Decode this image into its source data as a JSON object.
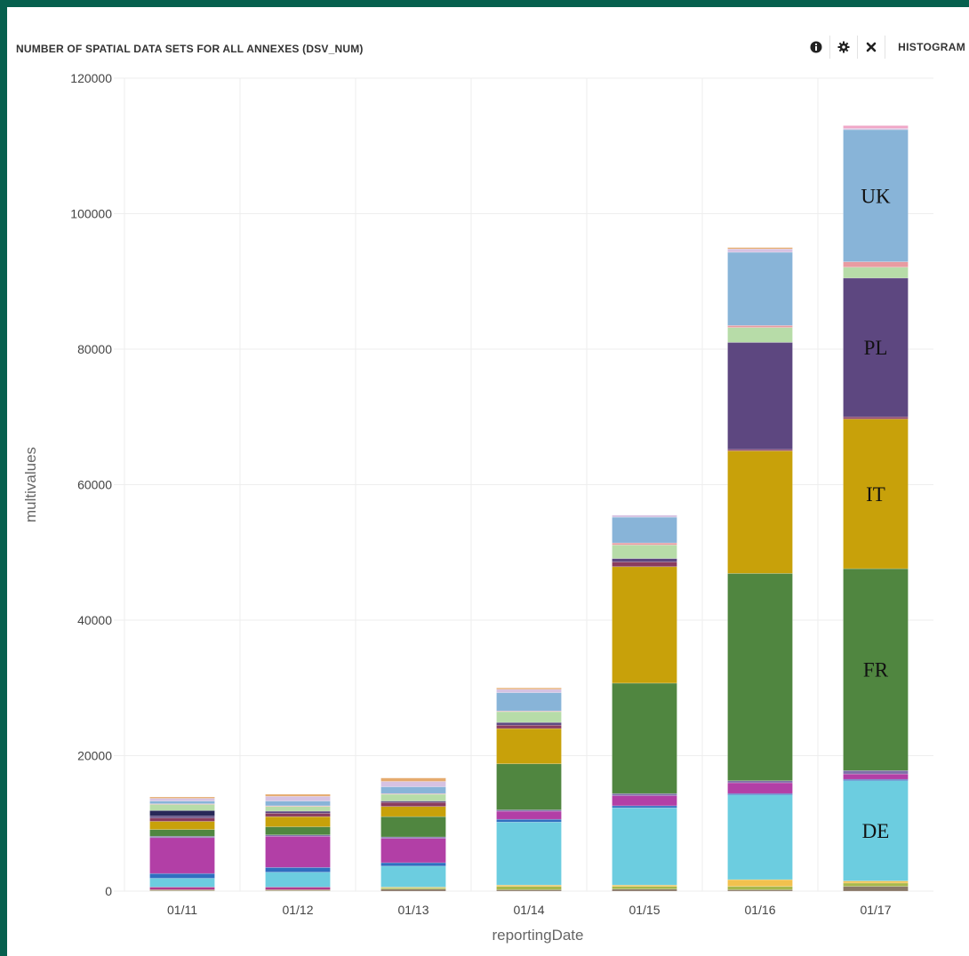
{
  "header": {
    "title": "NUMBER OF SPATIAL DATA SETS FOR ALL ANNEXES (DSV_NUM)",
    "view_label": "HISTOGRAM",
    "icons": [
      "info-icon",
      "gear-icon",
      "close-icon"
    ]
  },
  "chart_data": {
    "type": "bar",
    "stacked": true,
    "xlabel": "reportingDate",
    "ylabel": "multivalues",
    "ylim": [
      0,
      120000
    ],
    "yticks": [
      0,
      20000,
      40000,
      60000,
      80000,
      100000,
      120000
    ],
    "grid": true,
    "categories": [
      "01/11",
      "01/12",
      "01/13",
      "01/14",
      "01/15",
      "01/16",
      "01/17"
    ],
    "series": [
      {
        "color": "#8a7968",
        "values": [
          100,
          100,
          300,
          200,
          300,
          200,
          700
        ]
      },
      {
        "color": "#a8b84c",
        "values": [
          100,
          100,
          200,
          500,
          400,
          500,
          500
        ]
      },
      {
        "color": "#f2c14e",
        "values": [
          0,
          0,
          100,
          200,
          200,
          1000,
          300
        ]
      },
      {
        "color": "#b03c8c",
        "values": [
          400,
          400,
          0,
          0,
          0,
          0,
          0
        ]
      },
      {
        "color": "#6ccde0",
        "name": "DE",
        "values": [
          1300,
          2200,
          3100,
          9300,
          11400,
          12500,
          14800
        ]
      },
      {
        "color": "#2f6ec0",
        "values": [
          700,
          700,
          500,
          400,
          300,
          200,
          200
        ]
      },
      {
        "color": "#b23fa6",
        "values": [
          5300,
          4600,
          3600,
          1200,
          1500,
          1600,
          800
        ]
      },
      {
        "color": "#7e6fa8",
        "values": [
          200,
          200,
          200,
          200,
          300,
          300,
          500
        ]
      },
      {
        "color": "#508640",
        "name": "FR",
        "values": [
          1000,
          1200,
          3000,
          6800,
          16300,
          30600,
          29800
        ]
      },
      {
        "color": "#c8a10a",
        "name": "IT",
        "values": [
          1200,
          1500,
          1500,
          5200,
          17200,
          18100,
          22100
        ]
      },
      {
        "color": "#8a3c5e",
        "values": [
          500,
          500,
          600,
          500,
          700,
          200,
          300
        ]
      },
      {
        "color": "#5d4780",
        "name": "PL",
        "values": [
          300,
          300,
          200,
          400,
          500,
          15800,
          20500
        ]
      },
      {
        "color": "#282858",
        "values": [
          800,
          0,
          0,
          0,
          0,
          0,
          0
        ]
      },
      {
        "color": "#b7dca8",
        "values": [
          900,
          700,
          1000,
          1600,
          2000,
          2200,
          1600
        ]
      },
      {
        "color": "#e89ba1",
        "values": [
          100,
          100,
          100,
          100,
          300,
          300,
          800
        ]
      },
      {
        "color": "#88b4d8",
        "name": "UK",
        "values": [
          400,
          700,
          1000,
          2700,
          3800,
          10800,
          19500
        ]
      },
      {
        "color": "#d6c2e2",
        "values": [
          400,
          700,
          800,
          500,
          300,
          500,
          200
        ]
      },
      {
        "color": "#e5aa6d",
        "values": [
          200,
          300,
          500,
          200,
          0,
          200,
          0
        ]
      },
      {
        "color": "#f0a6c6",
        "values": [
          0,
          0,
          0,
          0,
          0,
          0,
          400
        ]
      }
    ],
    "annotations": [
      {
        "text": "UK",
        "category": "01/17",
        "series": "UK"
      },
      {
        "text": "PL",
        "category": "01/17",
        "series": "PL"
      },
      {
        "text": "IT",
        "category": "01/17",
        "series": "IT"
      },
      {
        "text": "FR",
        "category": "01/17",
        "series": "FR"
      },
      {
        "text": "DE",
        "category": "01/17",
        "series": "DE"
      }
    ]
  }
}
